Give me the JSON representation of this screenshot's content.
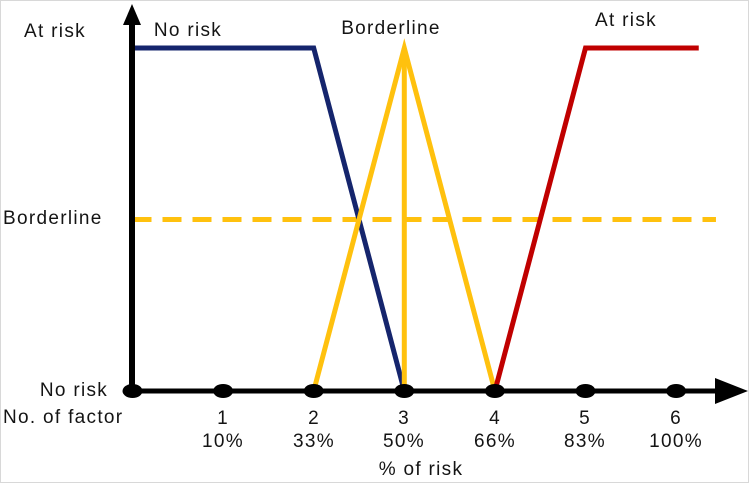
{
  "figure": {
    "background": "#ffffff",
    "axis_color": "#000000",
    "labels": {
      "y_axis_top": "At risk",
      "y_axis_mid": "Borderline",
      "y_axis_bottom": "No risk",
      "x_axis_name": "No. of factor",
      "x_axis_title": "% of risk"
    }
  },
  "chart_data": {
    "type": "line",
    "title": "",
    "xlabel": "% of risk",
    "x_axis_secondary_label": "No. of factor",
    "categories": [
      "1",
      "2",
      "3",
      "4",
      "5",
      "6"
    ],
    "percent_labels": [
      "10%",
      "33%",
      "50%",
      "66%",
      "83%",
      "100%"
    ],
    "y_level_labels": [
      "No risk",
      "Borderline",
      "At risk"
    ],
    "xlim": [
      0,
      6.8
    ],
    "ylim": [
      0,
      1.15
    ],
    "grid": false,
    "legend_position": "curve annotations along top",
    "series": [
      {
        "name": "No risk",
        "color": "#15256D",
        "style": "solid",
        "points": [
          [
            0,
            1
          ],
          [
            2,
            1
          ],
          [
            3,
            0
          ]
        ]
      },
      {
        "name": "Borderline",
        "color": "#FFC10E",
        "style": "solid",
        "points": [
          [
            2,
            0
          ],
          [
            3,
            1
          ],
          [
            4,
            0
          ]
        ]
      },
      {
        "name": "Borderline peak spike",
        "color": "#FFC10E",
        "style": "solid",
        "points": [
          [
            3,
            1
          ],
          [
            3,
            0
          ]
        ]
      },
      {
        "name": "At risk",
        "color": "#C00000",
        "style": "solid",
        "points": [
          [
            4,
            0
          ],
          [
            5,
            1
          ],
          [
            6.25,
            1
          ]
        ]
      }
    ],
    "reference_line": {
      "label": "Borderline",
      "level": 0.5,
      "color": "#FFC10E",
      "style": "dashed",
      "x_extent": [
        0,
        6.44
      ]
    },
    "annotations": [
      {
        "text": "No risk",
        "near_x": 1.0,
        "position": "top"
      },
      {
        "text": "Borderline",
        "near_x": 3.0,
        "position": "top"
      },
      {
        "text": "At risk",
        "near_x": 5.45,
        "position": "top"
      }
    ]
  }
}
